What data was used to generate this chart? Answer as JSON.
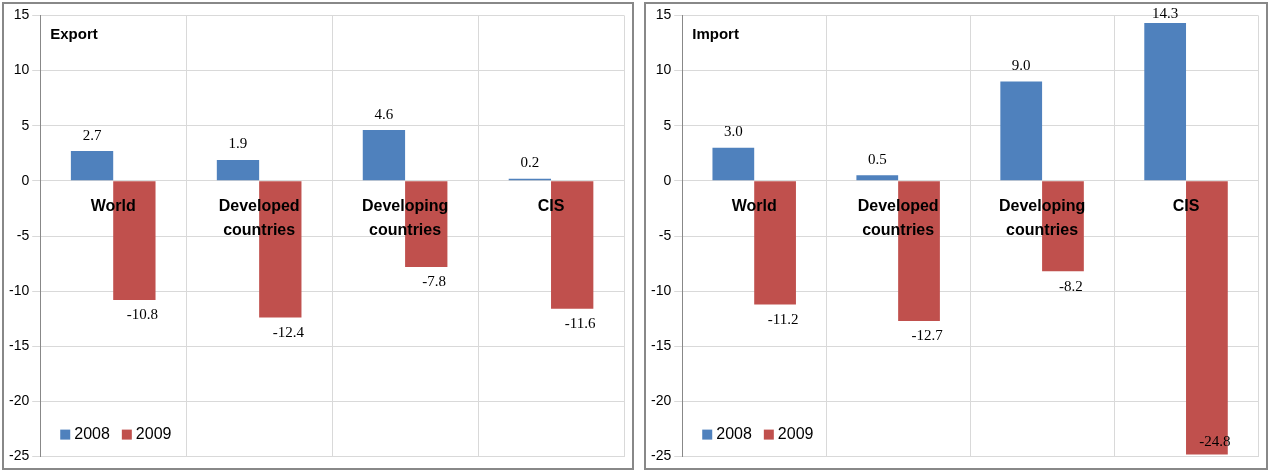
{
  "chart_data": [
    {
      "type": "bar",
      "title": "Export",
      "categories": [
        "World",
        "Developed countries",
        "Developing countries",
        "CIS"
      ],
      "series": [
        {
          "name": "2008",
          "color": "#4f81bd",
          "values": [
            2.7,
            1.9,
            4.6,
            0.2
          ],
          "value_labels": [
            "2.7",
            "1.9",
            "4.6",
            "0.2"
          ]
        },
        {
          "name": "2009",
          "color": "#c0504d",
          "values": [
            -10.8,
            -12.4,
            -7.8,
            -11.6
          ],
          "value_labels": [
            "-10.8",
            "-12.4",
            "-7.8",
            "-11.6"
          ]
        }
      ],
      "ylim": [
        -25,
        15
      ],
      "yticks": [
        -25,
        -20,
        -15,
        -10,
        -5,
        0,
        5,
        10,
        15
      ],
      "grid": true,
      "legend": "bottom left"
    },
    {
      "type": "bar",
      "title": "Import",
      "categories": [
        "World",
        "Developed countries",
        "Developing countries",
        "CIS"
      ],
      "series": [
        {
          "name": "2008",
          "color": "#4f81bd",
          "values": [
            3.0,
            0.5,
            9.0,
            14.3
          ],
          "value_labels": [
            "3.0",
            "0.5",
            "9.0",
            "14.3"
          ]
        },
        {
          "name": "2009",
          "color": "#c0504d",
          "values": [
            -11.2,
            -12.7,
            -8.2,
            -24.8
          ],
          "value_labels": [
            "-11.2",
            "-12.7",
            "-8.2",
            "-24.8"
          ]
        }
      ],
      "ylim": [
        -25,
        15
      ],
      "yticks": [
        -25,
        -20,
        -15,
        -10,
        -5,
        0,
        5,
        10,
        15
      ],
      "grid": true,
      "legend": "bottom left"
    }
  ]
}
